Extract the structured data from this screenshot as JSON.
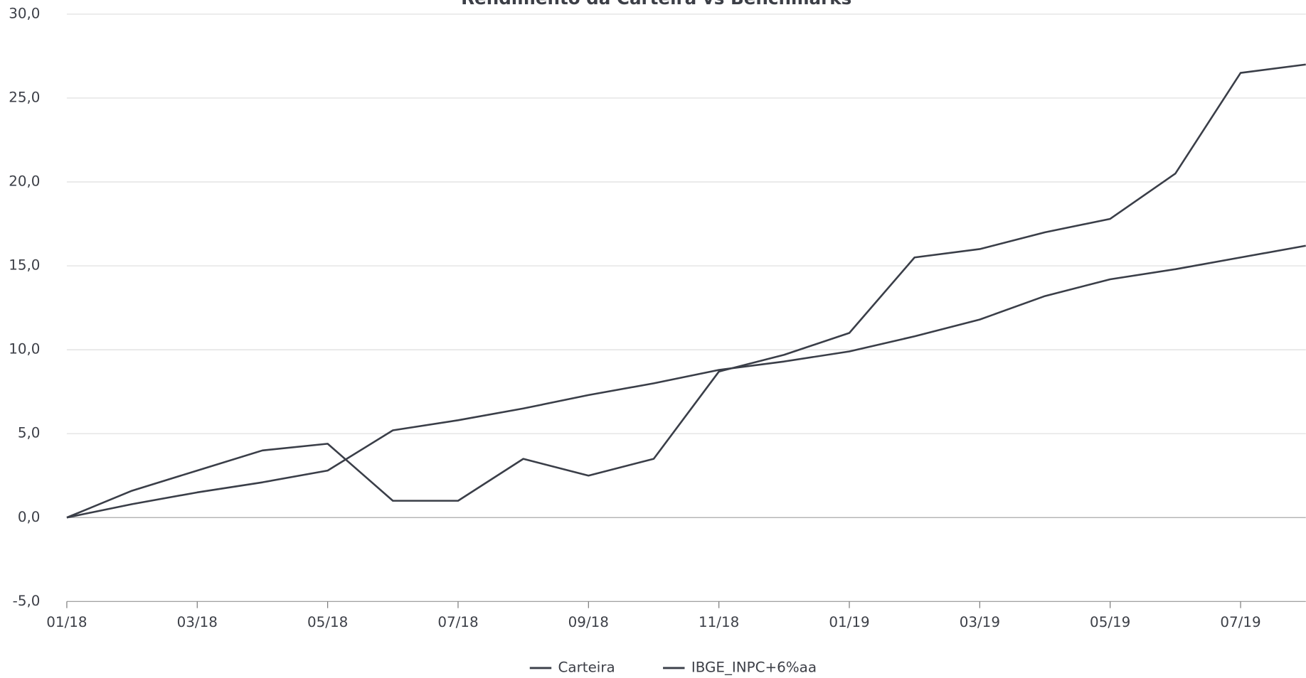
{
  "chart_data": {
    "type": "line",
    "title": "Rendimento da Carteira vs Benchmarks",
    "x": [
      "2018-01",
      "2018-02",
      "2018-03",
      "2018-04",
      "2018-05",
      "2018-06",
      "2018-07",
      "2018-08",
      "2018-09",
      "2018-10",
      "2018-11",
      "2018-12",
      "2019-01",
      "2019-02",
      "2019-03",
      "2019-04",
      "2019-05",
      "2019-06",
      "2019-07",
      "2019-08"
    ],
    "series": [
      {
        "name": "Carteira",
        "color": "#3a3e48",
        "values": [
          0,
          1.6,
          2.8,
          4.0,
          4.4,
          1.0,
          1.0,
          3.5,
          2.5,
          3.5,
          8.7,
          9.7,
          11.0,
          15.5,
          16.0,
          17.0,
          17.8,
          20.5,
          26.5,
          27.0
        ]
      },
      {
        "name": "IBGE_INPC+6%aa",
        "color": "#3a3e48",
        "values": [
          0,
          0.8,
          1.5,
          2.1,
          2.8,
          5.2,
          5.8,
          6.5,
          7.3,
          8.0,
          8.8,
          9.3,
          9.9,
          10.8,
          11.8,
          13.2,
          14.2,
          14.8,
          15.5,
          16.2
        ]
      }
    ],
    "xlim": [
      "2018-01",
      "2019-08"
    ],
    "xticks": [
      {
        "value": "2018-01",
        "label": "01/18"
      },
      {
        "value": "2018-03",
        "label": "03/18"
      },
      {
        "value": "2018-05",
        "label": "05/18"
      },
      {
        "value": "2018-07",
        "label": "07/18"
      },
      {
        "value": "2018-09",
        "label": "09/18"
      },
      {
        "value": "2018-11",
        "label": "11/18"
      },
      {
        "value": "2019-01",
        "label": "01/19"
      },
      {
        "value": "2019-03",
        "label": "03/19"
      },
      {
        "value": "2019-05",
        "label": "05/19"
      },
      {
        "value": "2019-07",
        "label": "07/19"
      }
    ],
    "ylim": [
      -5,
      30
    ],
    "yticks": [
      {
        "value": -5,
        "label": "-5,0"
      },
      {
        "value": 0,
        "label": "0,0"
      },
      {
        "value": 5,
        "label": "5,0"
      },
      {
        "value": 10,
        "label": "10,0"
      },
      {
        "value": 15,
        "label": "15,0"
      },
      {
        "value": 20,
        "label": "20,0"
      },
      {
        "value": 25,
        "label": "25,0"
      },
      {
        "value": 30,
        "label": "30,0"
      }
    ],
    "grid": true,
    "legend": "bottom"
  }
}
